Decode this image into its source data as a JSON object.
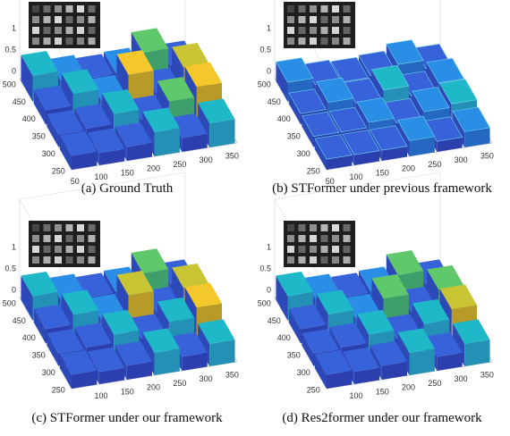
{
  "panels": [
    {
      "caption": "(a) Ground Truth",
      "z_ticks": [
        1,
        0.5,
        0
      ],
      "y_ticks": [
        500,
        450,
        400,
        350,
        300,
        250
      ],
      "x_ticks": [
        50,
        100,
        150,
        200,
        250,
        300,
        350
      ]
    },
    {
      "caption": "(b) STFormer under previous framework",
      "z_ticks": [
        1,
        0.5,
        0
      ],
      "y_ticks": [
        500,
        450,
        400,
        350,
        300,
        250
      ],
      "x_ticks": [
        50,
        100,
        150,
        200,
        250,
        300,
        350
      ]
    },
    {
      "caption": "(c) STFormer under our framework",
      "z_ticks": [
        1,
        0.5,
        0
      ],
      "y_ticks": [
        500,
        450,
        400,
        350,
        300,
        250
      ],
      "x_ticks": [
        100,
        150,
        200,
        250,
        300,
        350
      ]
    },
    {
      "caption": "(d) Res2former under our framework",
      "z_ticks": [
        1,
        0.5,
        0
      ],
      "y_ticks": [
        500,
        450,
        400,
        350,
        300,
        250
      ],
      "x_ticks": [
        100,
        150,
        200,
        250,
        300,
        350
      ]
    }
  ]
}
